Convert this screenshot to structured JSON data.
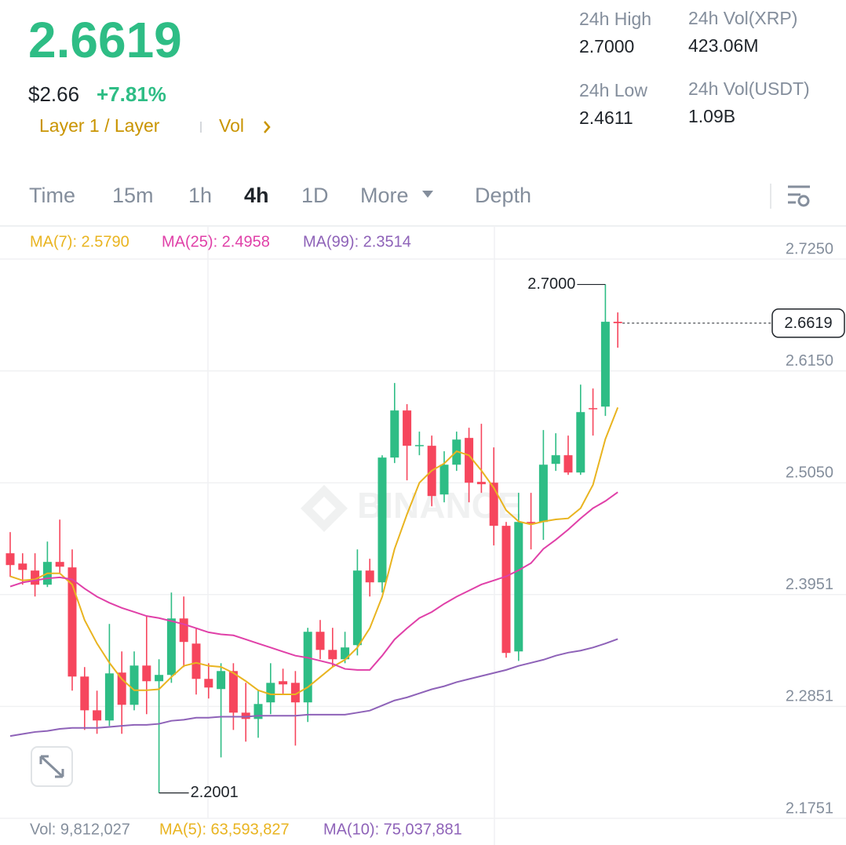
{
  "header": {
    "price": "2.6619",
    "fiat_price": "$2.66",
    "change": "+7.81%",
    "tags": "Layer 1 / Layer",
    "vol_link": "Vol"
  },
  "stats": [
    {
      "label": "24h High",
      "value": "2.7000"
    },
    {
      "label": "24h Vol(XRP)",
      "value": "423.06M"
    },
    {
      "label": "24h Low",
      "value": "2.4611"
    },
    {
      "label": "24h Vol(USDT)",
      "value": "1.09B"
    }
  ],
  "tabs": [
    "Time",
    "15m",
    "1h",
    "4h",
    "1D",
    "More",
    "Depth"
  ],
  "active_tab": 3,
  "chart_data": {
    "type": "candlestick",
    "watermark": "BINANCE",
    "up_color": "#2ebd85",
    "down_color": "#f6465d",
    "open": [
      2.4357,
      2.4256,
      2.4187,
      2.4048,
      2.4272,
      2.4218,
      2.3145,
      2.2813,
      2.2713,
      2.3184,
      2.2867,
      2.3253,
      2.3099,
      2.3161,
      2.3716,
      2.3469,
      2.3122,
      2.3022,
      2.3199,
      2.279,
      2.2728,
      2.2891,
      2.3099,
      2.3083,
      2.2891,
      2.3585,
      2.3407,
      2.3315,
      2.3454,
      2.4187,
      2.4071,
      2.5298,
      2.5761,
      2.5414,
      2.5414,
      2.4935,
      2.5228,
      2.5491,
      2.5059,
      2.5051,
      2.4627,
      2.3392,
      2.4665,
      2.4665,
      2.5236,
      2.5321,
      2.5151,
      2.5784,
      2.5799,
      2.6633
    ],
    "high": [
      2.4565,
      2.4357,
      2.4357,
      2.4472,
      2.4688,
      2.4395,
      2.3238,
      2.3006,
      2.3662,
      2.3392,
      2.3392,
      2.3739,
      2.3315,
      2.3971,
      2.3932,
      2.3624,
      2.3276,
      2.3276,
      2.3276,
      2.3083,
      2.3006,
      2.3276,
      2.3222,
      2.3199,
      2.3624,
      2.3701,
      2.3624,
      2.3585,
      2.4395,
      2.4303,
      2.5321,
      2.6031,
      2.5823,
      2.5553,
      2.5514,
      2.536,
      2.5553,
      2.5591,
      2.563,
      2.5398,
      2.4665,
      2.4951,
      2.4951,
      2.5568,
      2.5537,
      2.5514,
      2.6015,
      2.5977,
      2.7,
      2.6725
    ],
    "low": [
      2.4125,
      2.4048,
      2.3932,
      2.4025,
      2.4164,
      2.3006,
      2.262,
      2.2582,
      2.2659,
      2.2582,
      2.2813,
      2.2775,
      2.2001,
      2.3083,
      2.3238,
      2.2968,
      2.2929,
      2.235,
      2.262,
      2.2505,
      2.2543,
      2.2775,
      2.2968,
      2.2466,
      2.2698,
      2.3315,
      2.3238,
      2.3276,
      2.3353,
      2.3932,
      2.3971,
      2.5244,
      2.5074,
      2.5321,
      2.4819,
      2.4858,
      2.5167,
      2.4858,
      2.4951,
      2.4434,
      2.333,
      2.3299,
      2.4395,
      2.4488,
      2.5167,
      2.5128,
      2.5128,
      2.5514,
      2.5707,
      2.6378
    ],
    "close": [
      2.4241,
      2.4194,
      2.4048,
      2.4272,
      2.4225,
      2.3145,
      2.2813,
      2.2713,
      2.3176,
      2.2867,
      2.3253,
      2.3099,
      2.3161,
      2.3716,
      2.3485,
      2.3122,
      2.3037,
      2.3199,
      2.279,
      2.2728,
      2.2875,
      2.3083,
      2.3068,
      2.2891,
      2.3585,
      2.3407,
      2.3315,
      2.3431,
      2.4187,
      2.4071,
      2.5298,
      2.5761,
      2.5414,
      2.5421,
      2.492,
      2.5228,
      2.5475,
      2.5051,
      2.5036,
      2.4627,
      2.3377,
      2.4665,
      2.465,
      2.5228,
      2.5321,
      2.5151,
      2.5745,
      2.5776,
      2.6633,
      2.6619
    ],
    "series": [
      {
        "name": "MA(7): 2.5790",
        "color": "#e9b420",
        "values": [
          2.413,
          2.409,
          2.41,
          2.416,
          2.416,
          2.405,
          2.37,
          2.347,
          2.328,
          2.312,
          2.301,
          2.301,
          2.302,
          2.314,
          2.325,
          2.328,
          2.325,
          2.324,
          2.318,
          2.31,
          2.301,
          2.297,
          2.297,
          2.297,
          2.304,
          2.314,
          2.324,
          2.331,
          2.343,
          2.362,
          2.393,
          2.44,
          2.474,
          2.505,
          2.517,
          2.524,
          2.536,
          2.532,
          2.517,
          2.5,
          2.478,
          2.467,
          2.464,
          2.467,
          2.469,
          2.47,
          2.48,
          2.503,
          2.548,
          2.579
        ]
      },
      {
        "name": "MA(25): 2.4958",
        "color": "#e040a8",
        "values": [
          2.403,
          2.407,
          2.409,
          2.411,
          2.412,
          2.41,
          2.401,
          2.393,
          2.387,
          2.382,
          2.378,
          2.374,
          2.372,
          2.369,
          2.366,
          2.362,
          2.358,
          2.356,
          2.355,
          2.351,
          2.347,
          2.343,
          2.339,
          2.335,
          2.333,
          2.33,
          2.327,
          2.322,
          2.321,
          2.321,
          2.335,
          2.351,
          2.362,
          2.372,
          2.378,
          2.386,
          2.393,
          2.399,
          2.405,
          2.409,
          2.413,
          2.419,
          2.426,
          2.44,
          2.449,
          2.459,
          2.47,
          2.48,
          2.487,
          2.4958
        ]
      },
      {
        "name": "MA(99): 2.3514",
        "color": "#8e62b8",
        "values": [
          2.256,
          2.258,
          2.26,
          2.261,
          2.263,
          2.264,
          2.264,
          2.264,
          2.265,
          2.266,
          2.267,
          2.267,
          2.268,
          2.271,
          2.272,
          2.274,
          2.274,
          2.275,
          2.275,
          2.275,
          2.276,
          2.276,
          2.276,
          2.276,
          2.277,
          2.277,
          2.277,
          2.277,
          2.279,
          2.281,
          2.286,
          2.291,
          2.294,
          2.298,
          2.302,
          2.305,
          2.309,
          2.312,
          2.315,
          2.318,
          2.321,
          2.325,
          2.328,
          2.331,
          2.335,
          2.338,
          2.34,
          2.343,
          2.347,
          2.3514
        ]
      }
    ],
    "high_marker": {
      "value": 2.7,
      "label": "2.7000"
    },
    "low_marker": {
      "value": 2.2001,
      "label": "2.2001"
    },
    "last_price": {
      "value": 2.6619,
      "label": "2.6619"
    },
    "ylim": [
      2.1751,
      2.7575
    ],
    "yticks": [
      {
        "value": 2.725,
        "label": "2.7250"
      },
      {
        "value": 2.615,
        "label": "2.6150"
      },
      {
        "value": 2.505,
        "label": "2.5050"
      },
      {
        "value": 2.3951,
        "label": "2.3951"
      },
      {
        "value": 2.2851,
        "label": "2.2851"
      },
      {
        "value": 2.1751,
        "label": "2.1751"
      }
    ],
    "grid": true,
    "volume_legend": [
      {
        "text": "Vol: 9,812,027",
        "color": "#848e9c"
      },
      {
        "text": "MA(5): 63,593,827",
        "color": "#e9b420"
      },
      {
        "text": "MA(10): 75,037,881",
        "color": "#8e62b8"
      }
    ]
  }
}
